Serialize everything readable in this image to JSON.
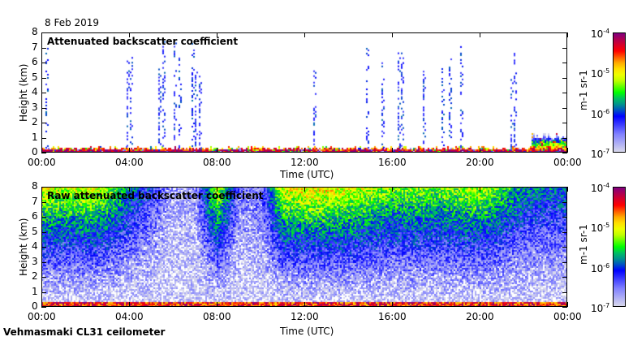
{
  "date": "8 Feb 2019",
  "footer": "Vehmasmaki CL31 ceilometer",
  "chart_data": [
    {
      "type": "heatmap",
      "title": "Attenuated backscatter coefficient",
      "xlabel": "Time (UTC)",
      "ylabel": "Height (km)",
      "xlim": [
        0,
        24
      ],
      "ylim": [
        0,
        8
      ],
      "xticks": [
        "00:00",
        "04:00",
        "08:00",
        "12:00",
        "16:00",
        "20:00",
        "00:00"
      ],
      "yticks": [
        "0",
        "1",
        "2",
        "3",
        "4",
        "5",
        "6",
        "7",
        "8"
      ],
      "colorbar": {
        "unit_label": "m-1 sr-1",
        "scale": "log",
        "range": [
          1e-07,
          0.0001
        ],
        "ticks": [
          "-7",
          "-6",
          "-5",
          "-4"
        ]
      },
      "near_ground_layer_top_km": 0.4,
      "cloud_columns_hours": [
        0.2,
        3.9,
        4.05,
        5.35,
        5.5,
        6.05,
        6.25,
        6.85,
        7.0,
        7.2,
        12.4,
        14.8,
        15.5,
        16.25,
        16.4,
        17.4,
        18.25,
        18.6,
        19.1,
        21.4,
        21.55
      ]
    },
    {
      "type": "heatmap",
      "title": "Raw attenuated backscatter coefficient",
      "xlabel": "Time (UTC)",
      "ylabel": "Height (km)",
      "xlim": [
        0,
        24
      ],
      "ylim": [
        0,
        8
      ],
      "xticks": [
        "00:00",
        "04:00",
        "08:00",
        "12:00",
        "16:00",
        "20:00",
        "00:00"
      ],
      "yticks": [
        "0",
        "1",
        "2",
        "3",
        "4",
        "5",
        "6",
        "7",
        "8"
      ],
      "colorbar": {
        "unit_label": "m-1 sr-1",
        "scale": "log",
        "range": [
          1e-07,
          0.0001
        ],
        "ticks": [
          "-7",
          "-6",
          "-5",
          "-4"
        ]
      },
      "top_signal_log10_by_hour": [
        -5.2,
        -5.3,
        -5.2,
        -5.4,
        -5.9,
        -6.3,
        -6.8,
        -6.7,
        -5.2,
        -6.6,
        -6.5,
        -5.2,
        -5.1,
        -5.1,
        -5.2,
        -5.3,
        -5.5,
        -5.4,
        -5.5,
        -5.4,
        -5.3,
        -5.6,
        -5.9,
        -6.0
      ]
    }
  ]
}
